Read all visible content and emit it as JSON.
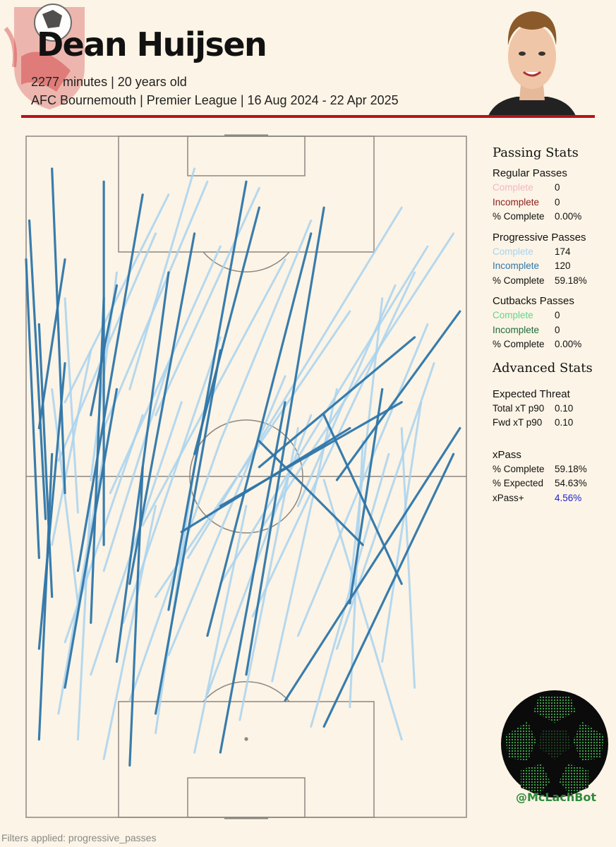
{
  "header": {
    "player_name": "Dean Huijsen",
    "subtitle_1": "2277 minutes | 20 years old",
    "subtitle_2": "AFC Bournemouth | Premier League | 16 Aug 2024 - 22 Apr 2025"
  },
  "colors": {
    "accent_red": "#b5121b",
    "regular_complete": "#f2b8c2",
    "regular_incomplete": "#8b1c1c",
    "progressive_complete": "#a9d4f0",
    "progressive_incomplete": "#2f76a9",
    "cutback_complete": "#67d48a",
    "cutback_incomplete": "#1f6b3a",
    "xpass_plus": "#2222cc"
  },
  "stats": {
    "passing_title": "Passing Stats",
    "regular": {
      "title": "Regular Passes",
      "rows": [
        {
          "label": "Complete",
          "value": "0"
        },
        {
          "label": "Incomplete",
          "value": "0"
        },
        {
          "label": "% Complete",
          "value": "0.00%"
        }
      ]
    },
    "progressive": {
      "title": "Progressive Passes",
      "rows": [
        {
          "label": "Complete",
          "value": "174"
        },
        {
          "label": "Incomplete",
          "value": "120"
        },
        {
          "label": "% Complete",
          "value": "59.18%"
        }
      ]
    },
    "cutbacks": {
      "title": "Cutbacks Passes",
      "rows": [
        {
          "label": "Complete",
          "value": "0"
        },
        {
          "label": "Incomplete",
          "value": "0"
        },
        {
          "label": "% Complete",
          "value": "0.00%"
        }
      ]
    },
    "advanced_title": "Advanced Stats",
    "threat": {
      "title": "Expected Threat",
      "rows": [
        {
          "label": "Total xT p90",
          "value": "0.10"
        },
        {
          "label": "Fwd xT p90",
          "value": "0.10"
        }
      ]
    },
    "xpass": {
      "title": "xPass",
      "rows": [
        {
          "label": "% Complete",
          "value": "59.18%"
        },
        {
          "label": "% Expected",
          "value": "54.63%"
        },
        {
          "label": "xPass+",
          "value": "4.56%"
        }
      ]
    }
  },
  "badge": {
    "handle": "@McLachBot"
  },
  "footer": {
    "filters": "Filters applied: progressive_passes"
  },
  "chart_data": {
    "type": "scatter",
    "pitch": {
      "length": 105,
      "width": 68,
      "attacking_direction": "up"
    },
    "series": [
      {
        "name": "Complete",
        "color": "#a9d4f0",
        "passes": [
          {
            "x0": 55,
            "y0": 5,
            "x1": 90,
            "y1": 20
          },
          {
            "x0": 52,
            "y0": 10,
            "x1": 84,
            "y1": 14
          },
          {
            "x0": 50,
            "y0": 13,
            "x1": 88,
            "y1": 30
          },
          {
            "x0": 47,
            "y0": 8,
            "x1": 80,
            "y1": 6
          },
          {
            "x0": 45,
            "y0": 18,
            "x1": 86,
            "y1": 40
          },
          {
            "x0": 42,
            "y0": 4,
            "x1": 72,
            "y1": 10
          },
          {
            "x0": 40,
            "y0": 25,
            "x1": 94,
            "y1": 58
          },
          {
            "x0": 38,
            "y0": 12,
            "x1": 70,
            "y1": 22
          },
          {
            "x0": 36,
            "y0": 30,
            "x1": 88,
            "y1": 62
          },
          {
            "x0": 34,
            "y0": 20,
            "x1": 78,
            "y1": 50
          },
          {
            "x0": 33,
            "y0": 8,
            "x1": 66,
            "y1": 4
          },
          {
            "x0": 31,
            "y0": 35,
            "x1": 84,
            "y1": 60
          },
          {
            "x0": 30,
            "y0": 15,
            "x1": 74,
            "y1": 30
          },
          {
            "x0": 28,
            "y0": 42,
            "x1": 76,
            "y1": 62
          },
          {
            "x0": 27,
            "y0": 6,
            "x1": 62,
            "y1": 18
          },
          {
            "x0": 26,
            "y0": 48,
            "x1": 70,
            "y1": 63
          },
          {
            "x0": 25,
            "y0": 22,
            "x1": 68,
            "y1": 40
          },
          {
            "x0": 24,
            "y0": 55,
            "x1": 64,
            "y1": 61
          },
          {
            "x0": 22,
            "y0": 10,
            "x1": 64,
            "y1": 24
          },
          {
            "x0": 21,
            "y0": 38,
            "x1": 66,
            "y1": 48
          },
          {
            "x0": 20,
            "y0": 60,
            "x1": 60,
            "y1": 58
          },
          {
            "x0": 19,
            "y0": 28,
            "x1": 62,
            "y1": 44
          },
          {
            "x0": 18,
            "y0": 16,
            "x1": 58,
            "y1": 30
          },
          {
            "x0": 17,
            "y0": 50,
            "x1": 58,
            "y1": 52
          },
          {
            "x0": 16,
            "y0": 5,
            "x1": 56,
            "y1": 12
          },
          {
            "x0": 15,
            "y0": 33,
            "x1": 60,
            "y1": 42
          },
          {
            "x0": 14,
            "y0": 44,
            "x1": 56,
            "y1": 56
          },
          {
            "x0": 13,
            "y0": 20,
            "x1": 54,
            "y1": 26
          },
          {
            "x0": 12,
            "y0": 8,
            "x1": 50,
            "y1": 10
          },
          {
            "x0": 12,
            "y0": 58,
            "x1": 52,
            "y1": 46
          },
          {
            "x0": 10,
            "y0": 26,
            "x1": 48,
            "y1": 34
          },
          {
            "x0": 9,
            "y0": 12,
            "x1": 48,
            "y1": 20
          },
          {
            "x0": 60,
            "y0": 12,
            "x1": 98,
            "y1": 28
          },
          {
            "x0": 62,
            "y0": 20,
            "x1": 97,
            "y1": 36
          },
          {
            "x0": 58,
            "y0": 30,
            "x1": 92,
            "y1": 44
          },
          {
            "x0": 64,
            "y0": 6,
            "x1": 96,
            "y1": 22
          },
          {
            "x0": 66,
            "y0": 16,
            "x1": 100,
            "y1": 26
          },
          {
            "x0": 44,
            "y0": 36,
            "x1": 90,
            "y1": 66
          },
          {
            "x0": 48,
            "y0": 42,
            "x1": 82,
            "y1": 57
          },
          {
            "x0": 35,
            "y0": 50,
            "x1": 80,
            "y1": 55
          }
        ]
      },
      {
        "name": "Incomplete",
        "color": "#2f76a9",
        "passes": [
          {
            "x0": 50,
            "y0": 6,
            "x1": 100,
            "y1": 4
          },
          {
            "x0": 46,
            "y0": 3,
            "x1": 92,
            "y1": 0.5
          },
          {
            "x0": 42,
            "y0": 12,
            "x1": 98,
            "y1": 12
          },
          {
            "x0": 40,
            "y0": 2,
            "x1": 86,
            "y1": 0
          },
          {
            "x0": 38,
            "y0": 8,
            "x1": 96,
            "y1": 18
          },
          {
            "x0": 36,
            "y0": 16,
            "x1": 90,
            "y1": 26
          },
          {
            "x0": 34,
            "y0": 4,
            "x1": 76,
            "y1": 2
          },
          {
            "x0": 32,
            "y0": 22,
            "x1": 98,
            "y1": 34
          },
          {
            "x0": 30,
            "y0": 10,
            "x1": 80,
            "y1": 12
          },
          {
            "x0": 28,
            "y0": 28,
            "x1": 90,
            "y1": 44
          },
          {
            "x0": 26,
            "y0": 2,
            "x1": 70,
            "y1": 6
          },
          {
            "x0": 24,
            "y0": 14,
            "x1": 84,
            "y1": 22
          },
          {
            "x0": 22,
            "y0": 34,
            "x1": 94,
            "y1": 46
          },
          {
            "x0": 20,
            "y0": 6,
            "x1": 66,
            "y1": 14
          },
          {
            "x0": 18,
            "y0": 40,
            "x1": 60,
            "y1": 67
          },
          {
            "x0": 16,
            "y0": 20,
            "x1": 72,
            "y1": 30
          },
          {
            "x0": 14,
            "y0": 46,
            "x1": 56,
            "y1": 66
          },
          {
            "x0": 12,
            "y0": 2,
            "x1": 56,
            "y1": 4
          },
          {
            "x0": 10,
            "y0": 30,
            "x1": 64,
            "y1": 40
          },
          {
            "x0": 8,
            "y0": 16,
            "x1": 54,
            "y1": 18
          },
          {
            "x0": 52,
            "y0": 48,
            "x1": 78,
            "y1": 67
          },
          {
            "x0": 54,
            "y0": 36,
            "x1": 74,
            "y1": 60
          },
          {
            "x0": 56,
            "y0": 26,
            "x1": 94,
            "y1": 36
          },
          {
            "x0": 60,
            "y0": 2,
            "x1": 86,
            "y1": 6
          },
          {
            "x0": 62,
            "y0": 10,
            "x1": 82,
            "y1": 14
          },
          {
            "x0": 44,
            "y0": 24,
            "x1": 60,
            "y1": 50
          },
          {
            "x0": 48,
            "y0": 30,
            "x1": 64,
            "y1": 58
          },
          {
            "x0": 42,
            "y0": 52,
            "x1": 58,
            "y1": 36
          },
          {
            "x0": 36,
            "y0": 58,
            "x1": 62,
            "y1": 46
          },
          {
            "x0": 33,
            "y0": 50,
            "x1": 66,
            "y1": 55
          }
        ]
      }
    ],
    "title": "",
    "xlabel": "",
    "ylabel": "",
    "grid": false,
    "legend": "right"
  }
}
